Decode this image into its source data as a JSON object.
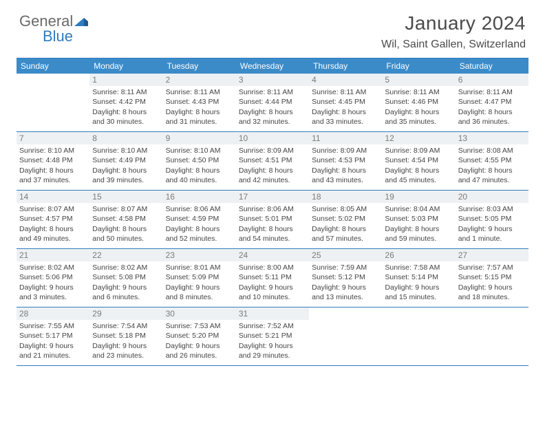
{
  "logo": {
    "general": "General",
    "blue": "Blue"
  },
  "title": "January 2024",
  "location": "Wil, Saint Gallen, Switzerland",
  "colors": {
    "header_bg": "#3b8bc9",
    "border": "#2f7bbf",
    "daynum_bg": "#eef1f3",
    "text": "#444444"
  },
  "weekdays": [
    "Sunday",
    "Monday",
    "Tuesday",
    "Wednesday",
    "Thursday",
    "Friday",
    "Saturday"
  ],
  "weeks": [
    [
      {
        "n": "",
        "sr": "",
        "ss": "",
        "dl": ""
      },
      {
        "n": "1",
        "sr": "Sunrise: 8:11 AM",
        "ss": "Sunset: 4:42 PM",
        "dl": "Daylight: 8 hours and 30 minutes."
      },
      {
        "n": "2",
        "sr": "Sunrise: 8:11 AM",
        "ss": "Sunset: 4:43 PM",
        "dl": "Daylight: 8 hours and 31 minutes."
      },
      {
        "n": "3",
        "sr": "Sunrise: 8:11 AM",
        "ss": "Sunset: 4:44 PM",
        "dl": "Daylight: 8 hours and 32 minutes."
      },
      {
        "n": "4",
        "sr": "Sunrise: 8:11 AM",
        "ss": "Sunset: 4:45 PM",
        "dl": "Daylight: 8 hours and 33 minutes."
      },
      {
        "n": "5",
        "sr": "Sunrise: 8:11 AM",
        "ss": "Sunset: 4:46 PM",
        "dl": "Daylight: 8 hours and 35 minutes."
      },
      {
        "n": "6",
        "sr": "Sunrise: 8:11 AM",
        "ss": "Sunset: 4:47 PM",
        "dl": "Daylight: 8 hours and 36 minutes."
      }
    ],
    [
      {
        "n": "7",
        "sr": "Sunrise: 8:10 AM",
        "ss": "Sunset: 4:48 PM",
        "dl": "Daylight: 8 hours and 37 minutes."
      },
      {
        "n": "8",
        "sr": "Sunrise: 8:10 AM",
        "ss": "Sunset: 4:49 PM",
        "dl": "Daylight: 8 hours and 39 minutes."
      },
      {
        "n": "9",
        "sr": "Sunrise: 8:10 AM",
        "ss": "Sunset: 4:50 PM",
        "dl": "Daylight: 8 hours and 40 minutes."
      },
      {
        "n": "10",
        "sr": "Sunrise: 8:09 AM",
        "ss": "Sunset: 4:51 PM",
        "dl": "Daylight: 8 hours and 42 minutes."
      },
      {
        "n": "11",
        "sr": "Sunrise: 8:09 AM",
        "ss": "Sunset: 4:53 PM",
        "dl": "Daylight: 8 hours and 43 minutes."
      },
      {
        "n": "12",
        "sr": "Sunrise: 8:09 AM",
        "ss": "Sunset: 4:54 PM",
        "dl": "Daylight: 8 hours and 45 minutes."
      },
      {
        "n": "13",
        "sr": "Sunrise: 8:08 AM",
        "ss": "Sunset: 4:55 PM",
        "dl": "Daylight: 8 hours and 47 minutes."
      }
    ],
    [
      {
        "n": "14",
        "sr": "Sunrise: 8:07 AM",
        "ss": "Sunset: 4:57 PM",
        "dl": "Daylight: 8 hours and 49 minutes."
      },
      {
        "n": "15",
        "sr": "Sunrise: 8:07 AM",
        "ss": "Sunset: 4:58 PM",
        "dl": "Daylight: 8 hours and 50 minutes."
      },
      {
        "n": "16",
        "sr": "Sunrise: 8:06 AM",
        "ss": "Sunset: 4:59 PM",
        "dl": "Daylight: 8 hours and 52 minutes."
      },
      {
        "n": "17",
        "sr": "Sunrise: 8:06 AM",
        "ss": "Sunset: 5:01 PM",
        "dl": "Daylight: 8 hours and 54 minutes."
      },
      {
        "n": "18",
        "sr": "Sunrise: 8:05 AM",
        "ss": "Sunset: 5:02 PM",
        "dl": "Daylight: 8 hours and 57 minutes."
      },
      {
        "n": "19",
        "sr": "Sunrise: 8:04 AM",
        "ss": "Sunset: 5:03 PM",
        "dl": "Daylight: 8 hours and 59 minutes."
      },
      {
        "n": "20",
        "sr": "Sunrise: 8:03 AM",
        "ss": "Sunset: 5:05 PM",
        "dl": "Daylight: 9 hours and 1 minute."
      }
    ],
    [
      {
        "n": "21",
        "sr": "Sunrise: 8:02 AM",
        "ss": "Sunset: 5:06 PM",
        "dl": "Daylight: 9 hours and 3 minutes."
      },
      {
        "n": "22",
        "sr": "Sunrise: 8:02 AM",
        "ss": "Sunset: 5:08 PM",
        "dl": "Daylight: 9 hours and 6 minutes."
      },
      {
        "n": "23",
        "sr": "Sunrise: 8:01 AM",
        "ss": "Sunset: 5:09 PM",
        "dl": "Daylight: 9 hours and 8 minutes."
      },
      {
        "n": "24",
        "sr": "Sunrise: 8:00 AM",
        "ss": "Sunset: 5:11 PM",
        "dl": "Daylight: 9 hours and 10 minutes."
      },
      {
        "n": "25",
        "sr": "Sunrise: 7:59 AM",
        "ss": "Sunset: 5:12 PM",
        "dl": "Daylight: 9 hours and 13 minutes."
      },
      {
        "n": "26",
        "sr": "Sunrise: 7:58 AM",
        "ss": "Sunset: 5:14 PM",
        "dl": "Daylight: 9 hours and 15 minutes."
      },
      {
        "n": "27",
        "sr": "Sunrise: 7:57 AM",
        "ss": "Sunset: 5:15 PM",
        "dl": "Daylight: 9 hours and 18 minutes."
      }
    ],
    [
      {
        "n": "28",
        "sr": "Sunrise: 7:55 AM",
        "ss": "Sunset: 5:17 PM",
        "dl": "Daylight: 9 hours and 21 minutes."
      },
      {
        "n": "29",
        "sr": "Sunrise: 7:54 AM",
        "ss": "Sunset: 5:18 PM",
        "dl": "Daylight: 9 hours and 23 minutes."
      },
      {
        "n": "30",
        "sr": "Sunrise: 7:53 AM",
        "ss": "Sunset: 5:20 PM",
        "dl": "Daylight: 9 hours and 26 minutes."
      },
      {
        "n": "31",
        "sr": "Sunrise: 7:52 AM",
        "ss": "Sunset: 5:21 PM",
        "dl": "Daylight: 9 hours and 29 minutes."
      },
      {
        "n": "",
        "sr": "",
        "ss": "",
        "dl": ""
      },
      {
        "n": "",
        "sr": "",
        "ss": "",
        "dl": ""
      },
      {
        "n": "",
        "sr": "",
        "ss": "",
        "dl": ""
      }
    ]
  ]
}
